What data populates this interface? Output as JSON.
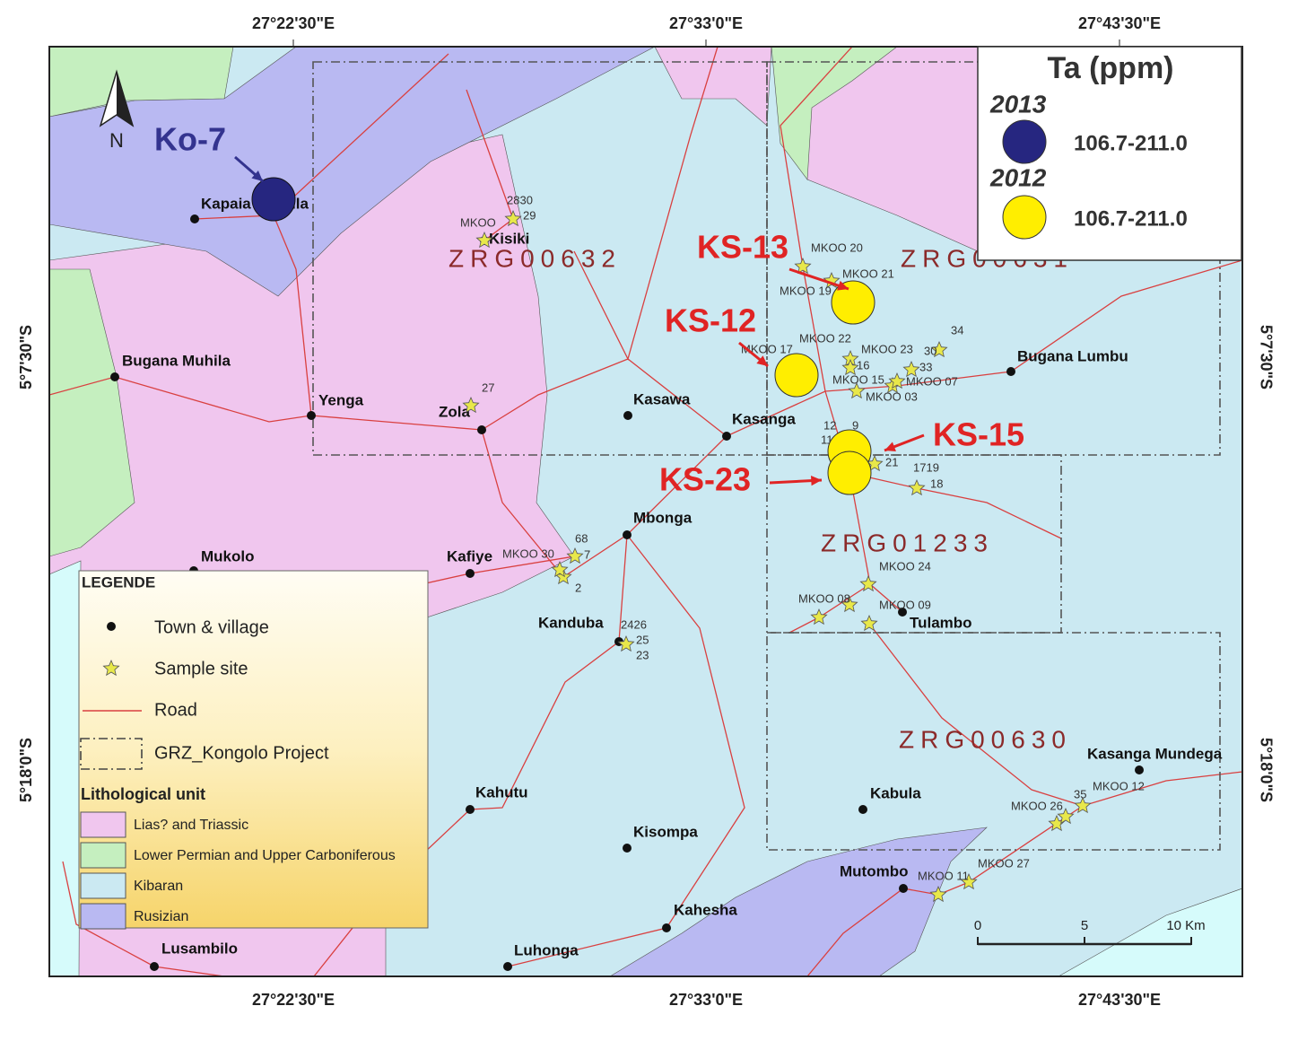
{
  "coordinates": {
    "top": [
      "27°22'30\"E",
      "27°33'0\"E",
      "27°43'30\"E"
    ],
    "bottom": [
      "27°22'30\"E",
      "27°33'0\"E",
      "27°43'30\"E"
    ],
    "left": [
      "5°7'30\"S",
      "5°18'0\"S"
    ],
    "right": [
      "5°7'30\"S",
      "5°18'0\"S"
    ]
  },
  "north": "N",
  "projects": [
    "ZRG00632",
    "ZRG00631",
    "ZRG01233",
    "ZRG00630"
  ],
  "towns": [
    "Kapaia Mubula",
    "Bugana Muhila",
    "Yenga",
    "Zola",
    "Kisiki",
    "Kasawa",
    "Kasanga",
    "Bugana Lumbu",
    "Mbonga",
    "Kafiye",
    "Mukolo",
    "Kanduba",
    "Tulambo",
    "Kahutu",
    "Kisompa",
    "Kahesha",
    "Mutombo",
    "Luhonga",
    "Lusambilo",
    "Kabula",
    "Kasanga Mundega"
  ],
  "samples": [
    "2830",
    "MKOO",
    "29",
    "27",
    "MKOO 20",
    "MKOO 21",
    "MKOO 19",
    "MKOO 22",
    "MKOO 17",
    "MKOO 23",
    "34",
    "30",
    "33",
    "MKOO 07",
    "MKOO 03",
    "MKOO 15",
    "16",
    "12",
    "9",
    "11",
    "21",
    "1719",
    "18",
    "MKOO 24",
    "MKOO 08",
    "MKOO 09",
    "68",
    "MKOO 30",
    "7",
    "2",
    "2426",
    "25",
    "23",
    "MKOO 26",
    "35",
    "MKOO 12",
    "MKOO 11",
    "MKOO 27"
  ],
  "callouts": [
    "Ko-7",
    "KS-13",
    "KS-12",
    "KS-15",
    "KS-23"
  ],
  "ta_legend": {
    "title": "Ta (ppm)",
    "groups": [
      {
        "year": "2013",
        "range": "106.7-211.0"
      },
      {
        "year": "2012",
        "range": "106.7-211.0"
      }
    ]
  },
  "legend": {
    "title": "LEGENDE",
    "items": [
      "Town & village",
      "Sample site",
      "Road",
      "GRZ_Kongolo Project"
    ],
    "lith_title": "Lithological unit",
    "units": [
      "Lias? and Triassic",
      "Lower Permian and Upper Carboniferous",
      "Kibaran",
      "Rusizian"
    ]
  },
  "scale": [
    "0",
    "5",
    "10 Km"
  ]
}
